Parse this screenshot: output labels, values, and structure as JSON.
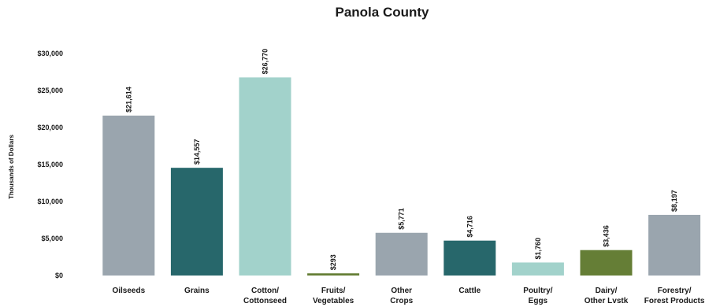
{
  "chart_data": {
    "type": "bar",
    "title": "Panola County",
    "ylabel": "Thousands of Dollars",
    "xlabel": "",
    "ylim": [
      0,
      30000
    ],
    "yticks": [
      0,
      5000,
      10000,
      15000,
      20000,
      25000,
      30000
    ],
    "ytick_labels": [
      "$0",
      "$5,000",
      "$10,000",
      "$15,000",
      "$20,000",
      "$25,000",
      "$30,000"
    ],
    "grid": false,
    "legend": "none",
    "categories": [
      [
        "Oilseeds"
      ],
      [
        "Grains"
      ],
      [
        "Cotton/",
        "Cottonseed"
      ],
      [
        "Fruits/",
        "Vegetables"
      ],
      [
        "Other",
        "Crops"
      ],
      [
        "Cattle"
      ],
      [
        "Poultry/",
        "Eggs"
      ],
      [
        "Dairy/",
        "Other Lvstk"
      ],
      [
        "Forestry/",
        "Forest Products"
      ]
    ],
    "values": [
      21614,
      14557,
      26770,
      293,
      5771,
      4716,
      1760,
      3436,
      8197
    ],
    "data_labels": [
      "$21,614",
      "$14,557",
      "$26,770",
      "$293",
      "$5,771",
      "$4,716",
      "$1,760",
      "$3,436",
      "$8,197"
    ],
    "colors": [
      "#9aa5ae",
      "#27676b",
      "#a2d2cb",
      "#657e36",
      "#9aa5ae",
      "#27676b",
      "#a2d2cb",
      "#657e36",
      "#9aa5ae"
    ]
  }
}
